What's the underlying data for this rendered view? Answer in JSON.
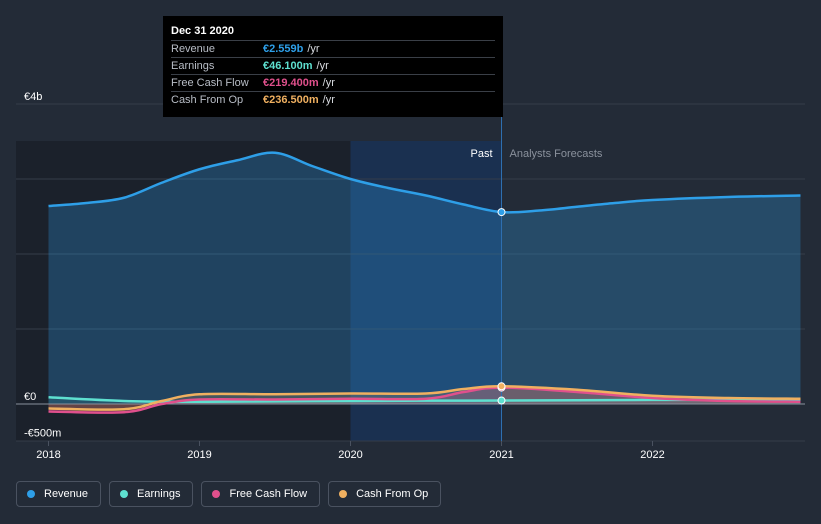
{
  "tooltip": {
    "date": "Dec 31 2020",
    "rows": [
      {
        "label": "Revenue",
        "value": "€2.559b",
        "unit": "/yr",
        "color": "#2e9fe8"
      },
      {
        "label": "Earnings",
        "value": "€46.100m",
        "unit": "/yr",
        "color": "#5ee0d0"
      },
      {
        "label": "Free Cash Flow",
        "value": "€219.400m",
        "unit": "/yr",
        "color": "#e0508c"
      },
      {
        "label": "Cash From Op",
        "value": "€236.500m",
        "unit": "/yr",
        "color": "#f0b060"
      }
    ]
  },
  "regions": {
    "past": "Past",
    "forecast": "Analysts Forecasts"
  },
  "legend": [
    {
      "label": "Revenue",
      "color": "#2e9fe8"
    },
    {
      "label": "Earnings",
      "color": "#5ee0d0"
    },
    {
      "label": "Free Cash Flow",
      "color": "#e0508c"
    },
    {
      "label": "Cash From Op",
      "color": "#f0b060"
    }
  ],
  "chart_data": {
    "type": "area",
    "x_ticks": [
      2018,
      2019,
      2020,
      2021,
      2022
    ],
    "y_tick_labels": [
      {
        "value": 4000,
        "label": "€4b"
      },
      {
        "value": 0,
        "label": "€0"
      },
      {
        "value": -500,
        "label": "-€500m"
      }
    ],
    "ylim": [
      -500,
      4000
    ],
    "xlim": [
      2017.9,
      2022.98
    ],
    "past_end": 2021.0,
    "highlight_start": 2020.0,
    "series": [
      {
        "name": "Revenue",
        "color": "#2e9fe8",
        "x": [
          2018.0,
          2018.25,
          2018.5,
          2018.75,
          2019.0,
          2019.25,
          2019.5,
          2019.75,
          2020.0,
          2020.25,
          2020.5,
          2020.75,
          2021.0,
          2021.25,
          2021.5,
          2021.75,
          2022.0,
          2022.5,
          2022.98
        ],
        "y": [
          2640,
          2680,
          2750,
          2950,
          3130,
          3250,
          3350,
          3170,
          3000,
          2880,
          2780,
          2660,
          2559,
          2580,
          2630,
          2680,
          2720,
          2760,
          2780
        ]
      },
      {
        "name": "Earnings",
        "color": "#5ee0d0",
        "x": [
          2018.0,
          2018.5,
          2019.0,
          2019.5,
          2020.0,
          2020.5,
          2021.0,
          2021.5,
          2022.0,
          2022.5,
          2022.98
        ],
        "y": [
          90,
          40,
          30,
          35,
          40,
          45,
          46,
          50,
          55,
          55,
          55
        ]
      },
      {
        "name": "Free Cash Flow",
        "color": "#e0508c",
        "x": [
          2018.0,
          2018.5,
          2018.75,
          2019.0,
          2019.5,
          2020.0,
          2020.5,
          2020.75,
          2021.0,
          2021.5,
          2022.0,
          2022.5,
          2022.98
        ],
        "y": [
          -100,
          -110,
          0,
          60,
          60,
          70,
          70,
          160,
          219,
          160,
          80,
          40,
          30
        ]
      },
      {
        "name": "Cash From Op",
        "color": "#f0b060",
        "x": [
          2018.0,
          2018.5,
          2018.75,
          2019.0,
          2019.5,
          2020.0,
          2020.5,
          2020.75,
          2021.0,
          2021.5,
          2022.0,
          2022.5,
          2022.98
        ],
        "y": [
          -60,
          -70,
          40,
          130,
          130,
          140,
          140,
          200,
          236,
          190,
          110,
          80,
          70
        ]
      }
    ]
  }
}
